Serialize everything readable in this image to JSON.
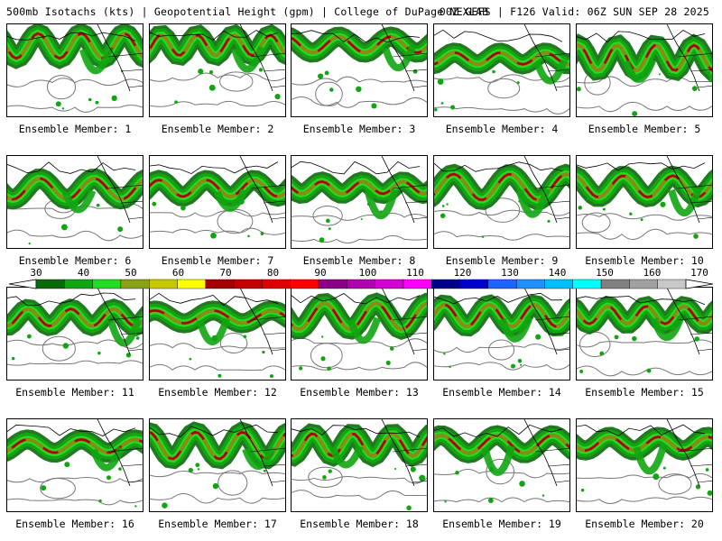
{
  "header": {
    "title_left": "500mb Isotachs (kts) | Geopotential Height (gpm) | College of DuPage NEXLAB",
    "title_right": "00Z GEFS | F126 Valid: 06Z SUN SEP 28 2025"
  },
  "colorbar": {
    "labels": [
      "30",
      "40",
      "50",
      "60",
      "70",
      "80",
      "90",
      "100",
      "110",
      "120",
      "130",
      "140",
      "150",
      "160",
      "170"
    ],
    "colors": [
      "#0a6a0a",
      "#11a511",
      "#22dd22",
      "#89a117",
      "#c8c800",
      "#ffff00",
      "#a50000",
      "#c30000",
      "#e00000",
      "#ff0000",
      "#8b008b",
      "#b000b0",
      "#d400d4",
      "#ff00ff",
      "#00008b",
      "#0000cd",
      "#1e64ff",
      "#1e90ff",
      "#00bfff",
      "#00ffff",
      "#808080",
      "#a0a0a0",
      "#c8c8c8"
    ]
  },
  "map_colors": {
    "wind_dark": "#0a6a0a",
    "wind_mid": "#11a511",
    "wind_light": "#22dd22",
    "wind_olive": "#8a8a14",
    "wind_core": "#a50000",
    "height_contour": "#777777",
    "border": "#000000"
  },
  "panels": [
    {
      "label": "Ensemble Member: 1"
    },
    {
      "label": "Ensemble Member: 2"
    },
    {
      "label": "Ensemble Member: 3"
    },
    {
      "label": "Ensemble Member: 4"
    },
    {
      "label": "Ensemble Member: 5"
    },
    {
      "label": "Ensemble Member: 6"
    },
    {
      "label": "Ensemble Member: 7"
    },
    {
      "label": "Ensemble Member: 8"
    },
    {
      "label": "Ensemble Member: 9"
    },
    {
      "label": "Ensemble Member: 10"
    },
    {
      "label": "Ensemble Member: 11"
    },
    {
      "label": "Ensemble Member: 12"
    },
    {
      "label": "Ensemble Member: 13"
    },
    {
      "label": "Ensemble Member: 14"
    },
    {
      "label": "Ensemble Member: 15"
    },
    {
      "label": "Ensemble Member: 16"
    },
    {
      "label": "Ensemble Member: 17"
    },
    {
      "label": "Ensemble Member: 18"
    },
    {
      "label": "Ensemble Member: 19"
    },
    {
      "label": "Ensemble Member: 20"
    }
  ]
}
